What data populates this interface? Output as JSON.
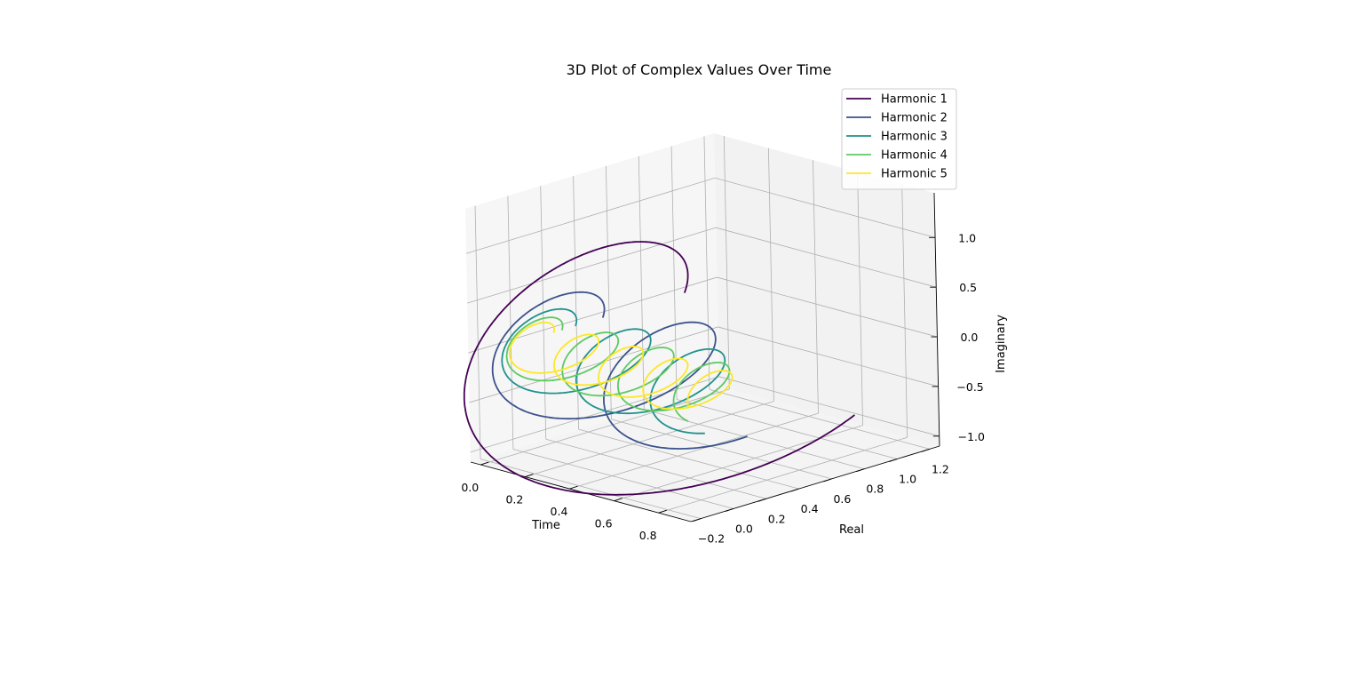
{
  "chart_data": {
    "type": "line",
    "projection": "3d",
    "title": "3D Plot of Complex Values Over Time",
    "xlabel": "Time",
    "ylabel": "Real",
    "zlabel": "Imaginary",
    "xlim": [
      -0.045,
      0.945
    ],
    "ylim": [
      -0.26,
      1.26
    ],
    "zlim": [
      -1.1,
      1.45
    ],
    "xticks": [
      "0.0",
      "0.2",
      "0.4",
      "0.6",
      "0.8"
    ],
    "yticks": [
      "−0.2",
      "0.0",
      "0.2",
      "0.4",
      "0.6",
      "0.8",
      "1.0",
      "1.2"
    ],
    "zticks": [
      "−1.0",
      "−0.5",
      "0.0",
      "0.5",
      "1.0"
    ],
    "legend": "top-right",
    "grid": true,
    "series": [
      {
        "name": "Harmonic 1",
        "color": "#440154",
        "amplitude": 1.0,
        "harmonic": 1,
        "t_range": [
          0,
          0.9
        ],
        "formula": "x=t, real=A*cos(2πkt), imag=A*sin(2πkt)"
      },
      {
        "name": "Harmonic 2",
        "color": "#3b528b",
        "amplitude": 0.5,
        "harmonic": 2,
        "t_range": [
          0,
          0.9
        ],
        "formula": "x=t, real=A*cos(2πkt), imag=A*sin(2πkt)"
      },
      {
        "name": "Harmonic 3",
        "color": "#21918c",
        "amplitude": 0.3333,
        "harmonic": 3,
        "t_range": [
          0,
          0.9
        ],
        "formula": "x=t, real=A*cos(2πkt), imag=A*sin(2πkt)"
      },
      {
        "name": "Harmonic 4",
        "color": "#5ec962",
        "amplitude": 0.25,
        "harmonic": 4,
        "t_range": [
          0,
          0.9
        ],
        "formula": "x=t, real=A*cos(2πkt), imag=A*sin(2πkt)"
      },
      {
        "name": "Harmonic 5",
        "color": "#fde725",
        "amplitude": 0.2,
        "harmonic": 5,
        "t_range": [
          0,
          0.9
        ],
        "formula": "x=t, real=A*cos(2πkt), imag=A*sin(2πkt)"
      }
    ]
  }
}
